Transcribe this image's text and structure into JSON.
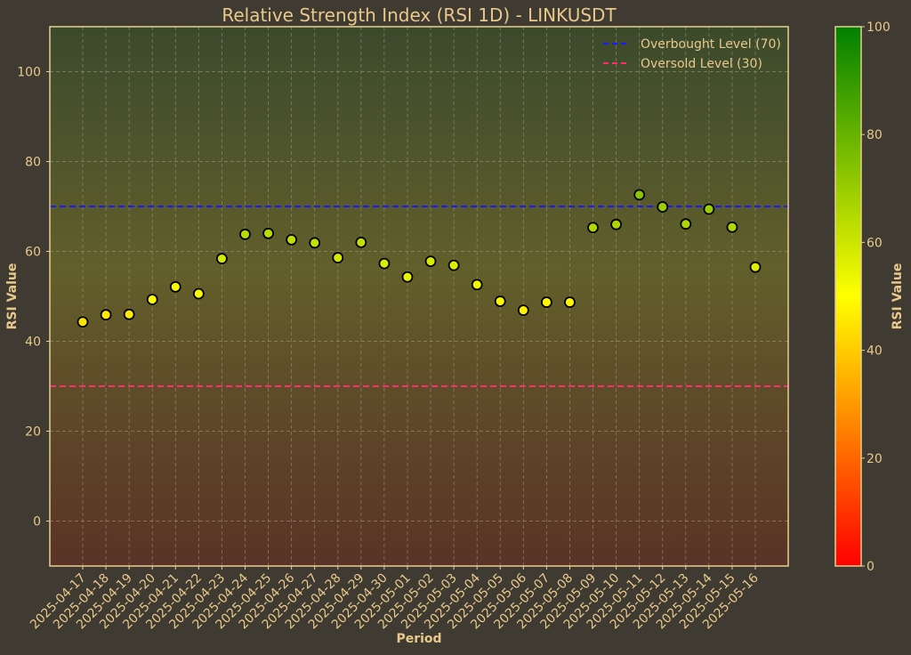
{
  "chart_data": {
    "type": "scatter",
    "title": "Relative Strength Index (RSI 1D) - LINKUSDT",
    "xlabel": "Period",
    "ylabel": "RSI Value",
    "ylim": [
      -10,
      110
    ],
    "yticks": [
      0,
      20,
      40,
      60,
      80,
      100
    ],
    "grid": true,
    "legend_position": "top-right",
    "categories": [
      "2025-04-17",
      "2025-04-18",
      "2025-04-19",
      "2025-04-20",
      "2025-04-21",
      "2025-04-22",
      "2025-04-23",
      "2025-04-24",
      "2025-04-25",
      "2025-04-26",
      "2025-04-27",
      "2025-04-28",
      "2025-04-29",
      "2025-04-30",
      "2025-05-01",
      "2025-05-02",
      "2025-05-03",
      "2025-05-04",
      "2025-05-05",
      "2025-05-06",
      "2025-05-07",
      "2025-05-08",
      "2025-05-09",
      "2025-05-10",
      "2025-05-11",
      "2025-05-12",
      "2025-05-13",
      "2025-05-14",
      "2025-05-15",
      "2025-05-16"
    ],
    "values": [
      44.3,
      45.9,
      46.0,
      49.3,
      52.1,
      50.6,
      58.4,
      63.8,
      64.0,
      62.6,
      61.9,
      58.6,
      62.0,
      57.3,
      54.3,
      57.8,
      56.9,
      52.6,
      48.9,
      46.9,
      48.7,
      48.7,
      65.3,
      66.0,
      72.6,
      69.9,
      66.1,
      69.4,
      65.4,
      56.5
    ],
    "reference_lines": [
      {
        "label": "Overbought Level (70)",
        "value": 70,
        "color": "#1a1aff"
      },
      {
        "label": "Oversold Level (30)",
        "value": 30,
        "color": "#ff2d6f"
      }
    ],
    "colorbar": {
      "label": "RSI Value",
      "min": 0,
      "max": 100,
      "ticks": [
        0,
        20,
        40,
        60,
        80,
        100
      ],
      "colors": [
        "#ff0000",
        "#ffff00",
        "#008000"
      ]
    }
  },
  "colors": {
    "background": "#3f3a32",
    "text": "#e8c98a",
    "axis": "#e8cf8f",
    "grid": "#a8a088",
    "marker_stroke": "#000000"
  }
}
